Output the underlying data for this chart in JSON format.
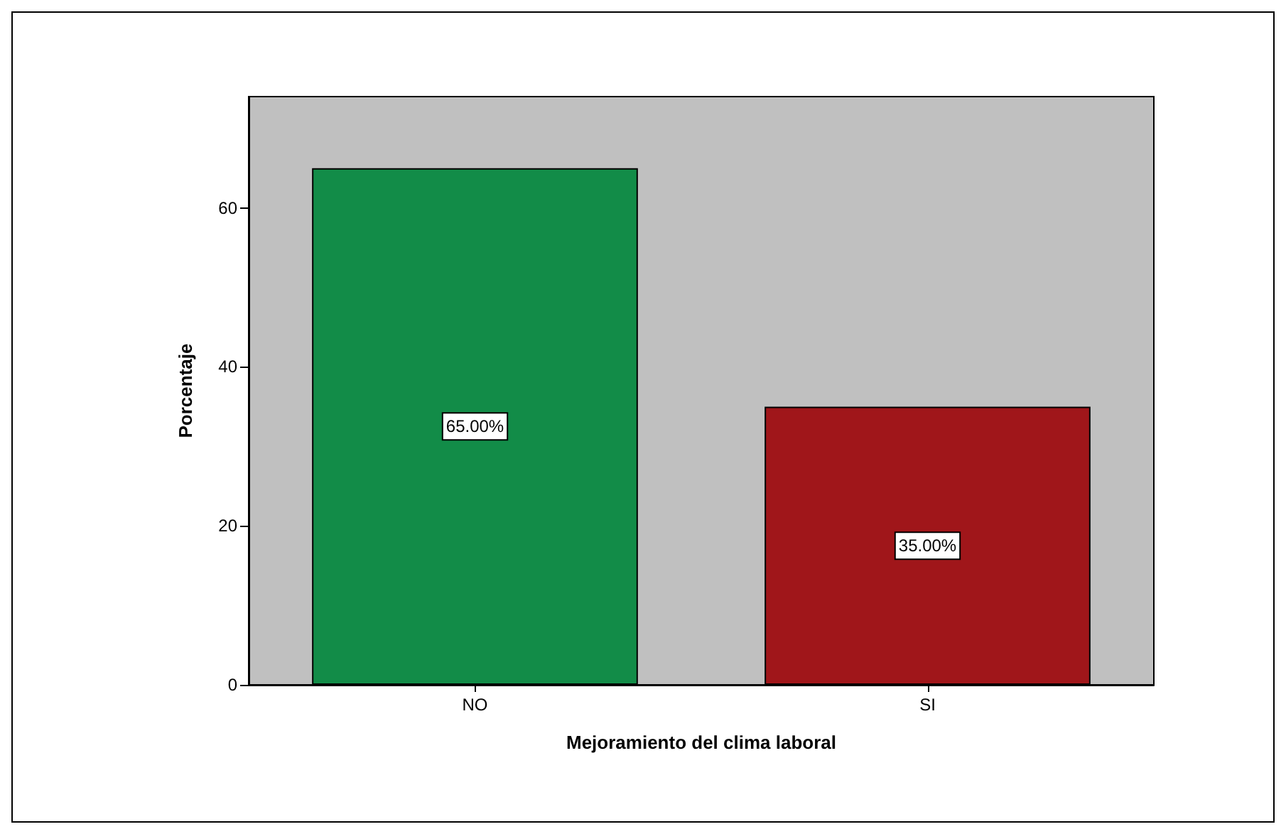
{
  "chart_data": {
    "type": "bar",
    "xlabel": "Mejoramiento del clima laboral",
    "ylabel": "Porcentaje",
    "categories": [
      "NO",
      "SI"
    ],
    "values": [
      65,
      35
    ],
    "colors": [
      "#128c48",
      "#a0161a"
    ],
    "value_labels": [
      "65.00%",
      "35.00%"
    ],
    "ylim": [
      0,
      74
    ],
    "yticks": [
      0,
      20,
      40,
      60
    ],
    "grid": false
  }
}
